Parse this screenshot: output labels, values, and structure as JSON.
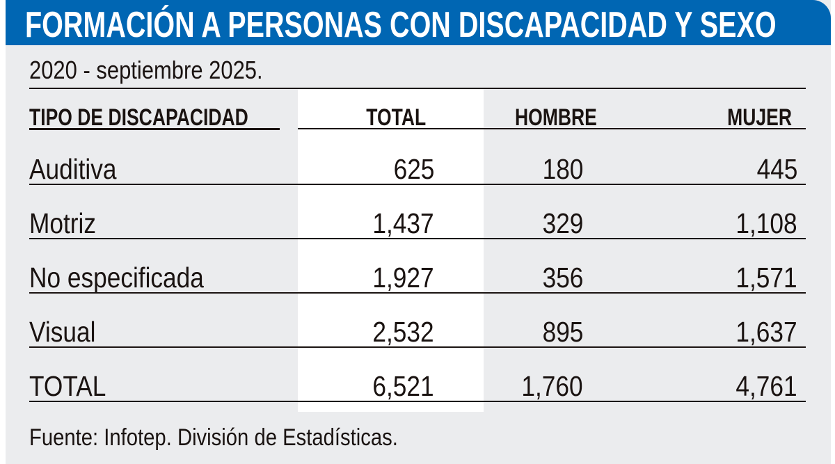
{
  "title": "FORMACIÓN A PERSONAS CON DISCAPACIDAD Y SEXO",
  "subtitle": "2020 - septiembre 2025.",
  "columns": [
    "TIPO DE  DISCAPACIDAD",
    "TOTAL",
    "HOMBRE",
    "MUJER"
  ],
  "rows": [
    {
      "tipo": "Auditiva",
      "total": "625",
      "hombre": "180",
      "mujer": "445"
    },
    {
      "tipo": "Motriz",
      "total": "1,437",
      "hombre": "329",
      "mujer": "1,108"
    },
    {
      "tipo": "No especificada",
      "total": "1,927",
      "hombre": "356",
      "mujer": "1,571"
    },
    {
      "tipo": "Visual",
      "total": "2,532",
      "hombre": "895",
      "mujer": "1,637"
    },
    {
      "tipo": "TOTAL",
      "total": "6,521",
      "hombre": "1,760",
      "mujer": "4,761"
    }
  ],
  "source": "Fuente: Infotep. División de Estadísticas.",
  "colors": {
    "header": "#0066b3",
    "panel": "#ebecee",
    "highlight_column": "#ffffff"
  }
}
